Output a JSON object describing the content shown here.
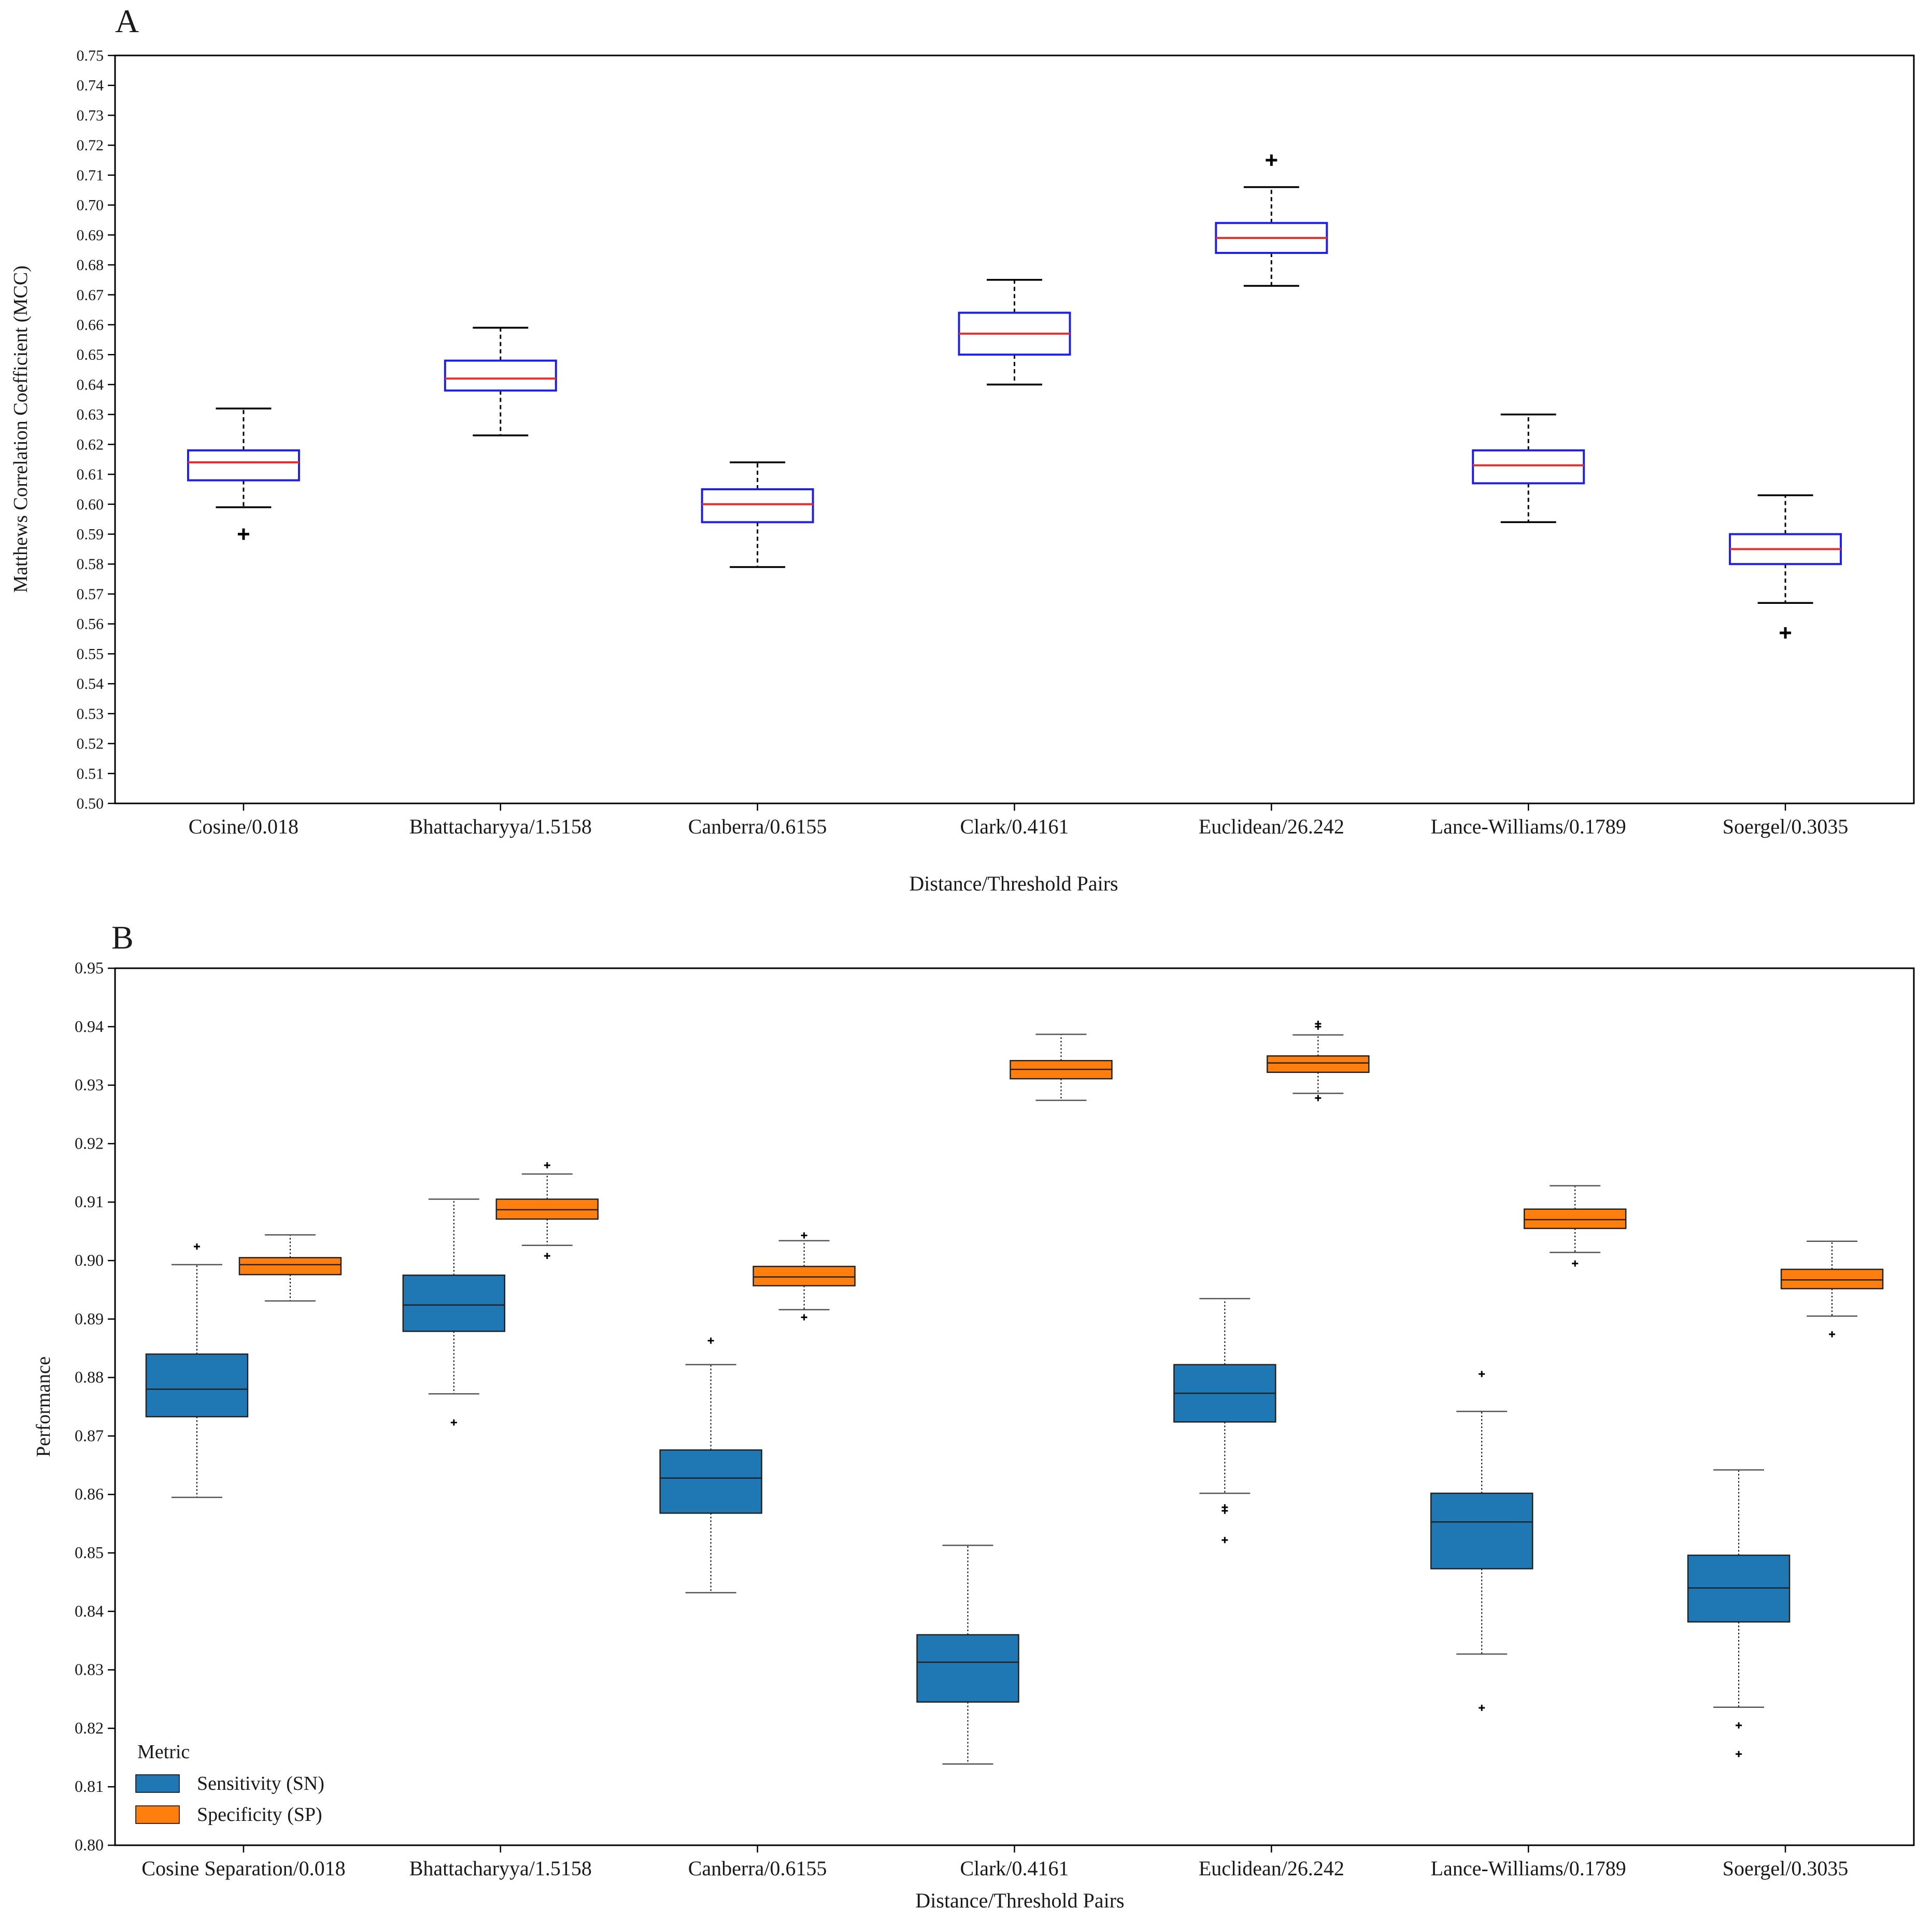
{
  "chart_data": [
    {
      "panel_label": "A",
      "type": "box",
      "ylabel": "Matthews Correlation Coefficient (MCC)",
      "xlabel": "Distance/Threshold Pairs",
      "ylim": [
        0.5,
        0.75
      ],
      "yticks": [
        "0.50",
        "0.51",
        "0.52",
        "0.53",
        "0.54",
        "0.55",
        "0.56",
        "0.57",
        "0.58",
        "0.59",
        "0.60",
        "0.61",
        "0.62",
        "0.63",
        "0.64",
        "0.65",
        "0.66",
        "0.67",
        "0.68",
        "0.69",
        "0.70",
        "0.71",
        "0.72",
        "0.73",
        "0.74",
        "0.75"
      ],
      "categories": [
        "Cosine/0.018",
        "Bhattacharyya/1.5158",
        "Canberra/0.6155",
        "Clark/0.4161",
        "Euclidean/26.242",
        "Lance-Williams/0.1789",
        "Soergel/0.3035"
      ],
      "series": [
        {
          "name": "MCC",
          "box_color": "#2020e0",
          "median_color": "#e03030",
          "boxes": [
            {
              "whislo": 0.599,
              "q1": 0.608,
              "med": 0.614,
              "q3": 0.618,
              "whishi": 0.632,
              "fliers": [
                0.59
              ]
            },
            {
              "whislo": 0.623,
              "q1": 0.638,
              "med": 0.642,
              "q3": 0.648,
              "whishi": 0.659,
              "fliers": []
            },
            {
              "whislo": 0.579,
              "q1": 0.594,
              "med": 0.6,
              "q3": 0.605,
              "whishi": 0.614,
              "fliers": []
            },
            {
              "whislo": 0.64,
              "q1": 0.65,
              "med": 0.657,
              "q3": 0.664,
              "whishi": 0.675,
              "fliers": []
            },
            {
              "whislo": 0.673,
              "q1": 0.684,
              "med": 0.689,
              "q3": 0.694,
              "whishi": 0.706,
              "fliers": [
                0.715
              ]
            },
            {
              "whislo": 0.594,
              "q1": 0.607,
              "med": 0.613,
              "q3": 0.618,
              "whishi": 0.63,
              "fliers": []
            },
            {
              "whislo": 0.567,
              "q1": 0.58,
              "med": 0.585,
              "q3": 0.59,
              "whishi": 0.603,
              "fliers": [
                0.557
              ]
            }
          ]
        }
      ]
    },
    {
      "panel_label": "B",
      "type": "box",
      "ylabel": "Performance",
      "xlabel": "Distance/Threshold Pairs",
      "ylim": [
        0.8,
        0.95
      ],
      "yticks": [
        "0.80",
        "0.81",
        "0.82",
        "0.83",
        "0.84",
        "0.85",
        "0.86",
        "0.87",
        "0.88",
        "0.89",
        "0.90",
        "0.91",
        "0.92",
        "0.93",
        "0.94",
        "0.95"
      ],
      "categories": [
        "Cosine Separation/0.018",
        "Bhattacharyya/1.5158",
        "Canberra/0.6155",
        "Clark/0.4161",
        "Euclidean/26.242",
        "Lance-Williams/0.1789",
        "Soergel/0.3035"
      ],
      "legend": {
        "title": "Metric",
        "position": "lower-left"
      },
      "series": [
        {
          "name": "Sensitivity (SN)",
          "color": "#1f77b4",
          "boxes": [
            {
              "whislo": 0.8595,
              "q1": 0.8733,
              "med": 0.878,
              "q3": 0.884,
              "whishi": 0.8993,
              "fliers": [
                0.9024
              ]
            },
            {
              "whislo": 0.8772,
              "q1": 0.8879,
              "med": 0.8924,
              "q3": 0.8975,
              "whishi": 0.9105,
              "fliers": [
                0.8723
              ]
            },
            {
              "whislo": 0.8432,
              "q1": 0.8568,
              "med": 0.8628,
              "q3": 0.8676,
              "whishi": 0.8822,
              "fliers": [
                0.8863
              ]
            },
            {
              "whislo": 0.8139,
              "q1": 0.8245,
              "med": 0.8313,
              "q3": 0.836,
              "whishi": 0.8513,
              "fliers": []
            },
            {
              "whislo": 0.8602,
              "q1": 0.8724,
              "med": 0.8773,
              "q3": 0.8822,
              "whishi": 0.8935,
              "fliers": [
                0.8578,
                0.8572,
                0.8522
              ]
            },
            {
              "whislo": 0.8327,
              "q1": 0.8473,
              "med": 0.8553,
              "q3": 0.8602,
              "whishi": 0.8742,
              "fliers": [
                0.8806,
                0.8235
              ]
            },
            {
              "whislo": 0.8236,
              "q1": 0.8382,
              "med": 0.844,
              "q3": 0.8496,
              "whishi": 0.8642,
              "fliers": [
                0.8205,
                0.8156
              ]
            }
          ]
        },
        {
          "name": "Specificity (SP)",
          "color": "#ff7f0e",
          "boxes": [
            {
              "whislo": 0.8931,
              "q1": 0.8976,
              "med": 0.8993,
              "q3": 0.9005,
              "whishi": 0.9044,
              "fliers": []
            },
            {
              "whislo": 0.9026,
              "q1": 0.9071,
              "med": 0.9087,
              "q3": 0.9105,
              "whishi": 0.9148,
              "fliers": [
                0.9163,
                0.9008
              ]
            },
            {
              "whislo": 0.8916,
              "q1": 0.8957,
              "med": 0.8972,
              "q3": 0.899,
              "whishi": 0.9034,
              "fliers": [
                0.9043,
                0.8903
              ]
            },
            {
              "whislo": 0.9274,
              "q1": 0.9311,
              "med": 0.9327,
              "q3": 0.9342,
              "whishi": 0.9387,
              "fliers": []
            },
            {
              "whislo": 0.9286,
              "q1": 0.9322,
              "med": 0.9338,
              "q3": 0.935,
              "whishi": 0.9386,
              "fliers": [
                0.9405,
                0.94,
                0.9278
              ]
            },
            {
              "whislo": 0.9014,
              "q1": 0.9055,
              "med": 0.907,
              "q3": 0.9088,
              "whishi": 0.9128,
              "fliers": [
                0.8995
              ]
            },
            {
              "whislo": 0.8905,
              "q1": 0.8952,
              "med": 0.8967,
              "q3": 0.8985,
              "whishi": 0.9033,
              "fliers": [
                0.8874
              ]
            }
          ]
        }
      ]
    }
  ]
}
